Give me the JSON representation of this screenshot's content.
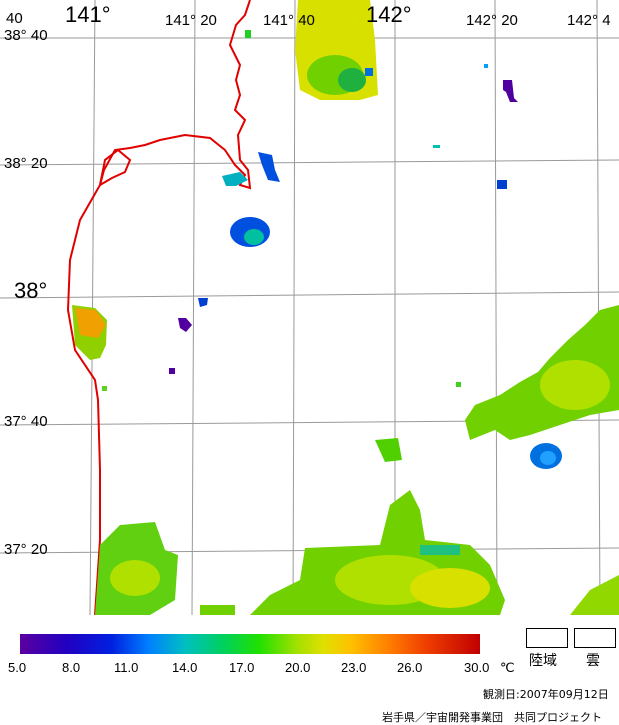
{
  "map": {
    "lon_labels": [
      "141°",
      "141° 20",
      "141° 40",
      "142°",
      "142° 20",
      "142° 4"
    ],
    "lat_labels": [
      "38° 40",
      "38° 20",
      "38°",
      "37° 40",
      "37° 20"
    ],
    "corner_label": "40"
  },
  "colorbar": {
    "ticks": [
      "5.0",
      "8.0",
      "11.0",
      "14.0",
      "17.0",
      "20.0",
      "23.0",
      "26.0",
      "30.0"
    ],
    "unit": "℃"
  },
  "legend": {
    "land": "陸域",
    "cloud": "雲"
  },
  "footer": {
    "date_label": "観測日:2007年09月12日",
    "credit": "岩手県／宇宙開発事業団　共同プロジェクト"
  }
}
